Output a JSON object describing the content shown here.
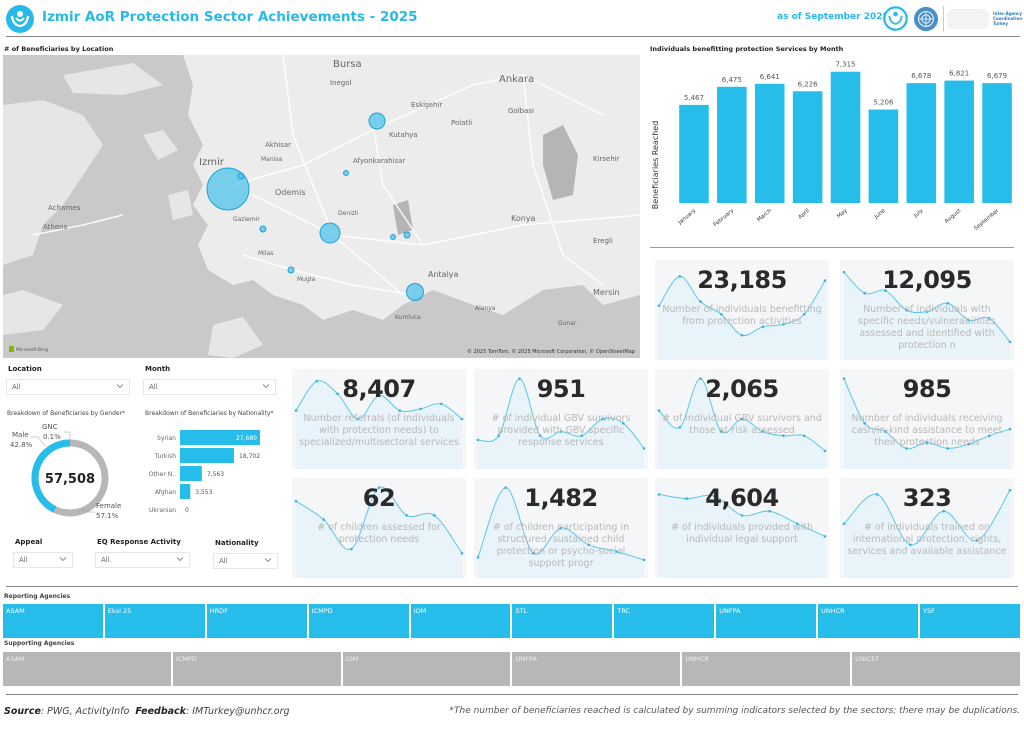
{
  "header": {
    "title": "Izmir AoR Protection Sector Achievements - 2025",
    "as_of": "as of September 2025",
    "partner_logo_text": "Inter-Agency\nCoordination\nTurkey"
  },
  "colors": {
    "accent": "#27b9e8",
    "bar": "#26bdea",
    "donut_male": "#26bdea",
    "donut_female": "#b7b7b7",
    "supporting": "#b7b7b7",
    "kpi_bg": "#f4f6f8"
  },
  "map": {
    "title": "# of Beneficiaries by Location",
    "place_labels": [
      "Bursa",
      "Ankara",
      "Inegol",
      "Eskişehir",
      "Polatli",
      "Golbasi",
      "Kutahya",
      "Afyonkarahisar",
      "Akhisar",
      "Manisa",
      "Izmir",
      "Gaziemir",
      "Odemis",
      "Denizli",
      "Konya",
      "Eregli",
      "Kirsehir",
      "Antalya",
      "Alanya",
      "Mersin",
      "Athens",
      "Acharnes",
      "Milas",
      "Mugla",
      "Kumluca",
      "Gunar"
    ],
    "attribution": "© 2025 TomTom, © 2025 Microsoft Corporation, © OpenStreetMap",
    "bing_label": "Microsoft Bing"
  },
  "chart_data": {
    "type": "bar",
    "title": "Individuals benefitting protection Services by Month",
    "xlabel": "",
    "ylabel": "Beneficiaries Reached",
    "categories": [
      "January",
      "February",
      "March",
      "April",
      "May",
      "June",
      "July",
      "August",
      "September"
    ],
    "values": [
      5467,
      6475,
      6641,
      6226,
      7315,
      5206,
      6678,
      6821,
      6679
    ],
    "value_labels": [
      "5,467",
      "6,475",
      "6,641",
      "6,226",
      "7,315",
      "5,206",
      "6,678",
      "6,821",
      "6,679"
    ],
    "ylim": [
      0,
      7800
    ],
    "grid": false
  },
  "filters": {
    "location": {
      "label": "Location",
      "value": "All"
    },
    "month": {
      "label": "Month",
      "value": "All"
    },
    "appeal": {
      "label": "Appeal",
      "value": "All"
    },
    "eq_response": {
      "label": "EQ Response Activity",
      "value": "All"
    },
    "nationality": {
      "label": "Nationality",
      "value": "All"
    }
  },
  "gender": {
    "title": "Breakdown of Beneficiaries by Gender*",
    "total": "57,508",
    "slices": [
      {
        "name": "Male",
        "pct_label": "42.8%",
        "pct": 42.8
      },
      {
        "name": "GNC",
        "pct_label": "0.1%",
        "pct": 0.1
      },
      {
        "name": "Female",
        "pct_label": "57.1%",
        "pct": 57.1
      }
    ]
  },
  "nationality_chart": {
    "title": "Breakdown of Beneficiaries by Nationality*",
    "categories": [
      "Syrian",
      "Turkish",
      "Other N..",
      "Afghan",
      "Ukranian"
    ],
    "values": [
      27680,
      18702,
      7563,
      3553,
      0
    ],
    "value_labels": [
      "27,680",
      "18,702",
      "7,563",
      "3,553",
      "0"
    ]
  },
  "kpis": [
    {
      "value": "23,185",
      "label": "Number of individuals benefitting from protection activities",
      "trend": [
        0.55,
        0.9,
        0.6,
        0.45,
        0.2,
        0.3,
        0.33,
        0.45,
        0.85
      ]
    },
    {
      "value": "12,095",
      "label": "Number of individuals with specific needs/vulnerabilities assessed and identified with protection n",
      "trend": [
        0.95,
        0.7,
        0.73,
        0.5,
        0.48,
        0.58,
        0.38,
        0.4,
        0.12
      ]
    },
    {
      "value": "8,407",
      "label": "Number referrals (of individuals with protection needs) to specialized/multisectoral services",
      "trend": [
        0.6,
        0.95,
        0.8,
        0.5,
        0.78,
        0.6,
        0.62,
        0.68,
        0.5
      ]
    },
    {
      "value": "951",
      "label": "# of individual GBV survivors provided with GBV specific response services",
      "trend": [
        0.25,
        0.3,
        0.98,
        0.3,
        0.35,
        0.3,
        0.5,
        0.45,
        0.15
      ]
    },
    {
      "value": "2,065",
      "label": "# of individual GBV survivors and those at risk assessed",
      "trend": [
        0.6,
        0.4,
        0.98,
        0.35,
        0.5,
        0.35,
        0.3,
        0.3,
        0.12
      ]
    },
    {
      "value": "985",
      "label": "Number of individuals receiving cash/in-kind assistance to meet their protection needs",
      "trend": [
        0.98,
        0.45,
        0.35,
        0.15,
        0.22,
        0.15,
        0.2,
        0.3,
        0.38
      ]
    },
    {
      "value": "62",
      "label": "# of children assessed for protection needs",
      "trend": [
        0.82,
        0.6,
        0.25,
        0.98,
        0.65,
        0.65,
        0.2
      ]
    },
    {
      "value": "1,482",
      "label": "# of children participating in structured, sustained child protection or psycho-social support progr",
      "trend": [
        0.15,
        0.98,
        0.2,
        0.5,
        0.3,
        0.22,
        0.12
      ]
    },
    {
      "value": "4,604",
      "label": "# of individuals provided with individual legal support",
      "trend": [
        0.9,
        0.85,
        0.88,
        0.65,
        0.7,
        0.55,
        0.4
      ]
    },
    {
      "value": "323",
      "label": "# of individuals trained on international protection, rights, services and available assistance",
      "trend": [
        0.55,
        0.9,
        0.3,
        0.7,
        0.35,
        0.95
      ]
    }
  ],
  "agencies": {
    "reporting_title": "Reporting Agencies",
    "reporting": [
      "ASAM",
      "Eksi 25",
      "HRDF",
      "ICMPD",
      "IOM",
      "STL",
      "TRC",
      "UNFPA",
      "UNHCR",
      "YSF"
    ],
    "supporting_title": "Supporting Agencies",
    "supporting": [
      "ASAM",
      "ICMPD",
      "IOM",
      "UNFPA",
      "UNHCR",
      "UNICEF"
    ]
  },
  "footer": {
    "source_label": "Source",
    "source_value": ": PWG, ActivityInfo",
    "feedback_label": "Feedback",
    "feedback_value": ": IMTurkey@unhcr.org",
    "note": "*The number of beneficiaries reached is calculated by summing indicators selected by the sectors; there may be duplications."
  }
}
